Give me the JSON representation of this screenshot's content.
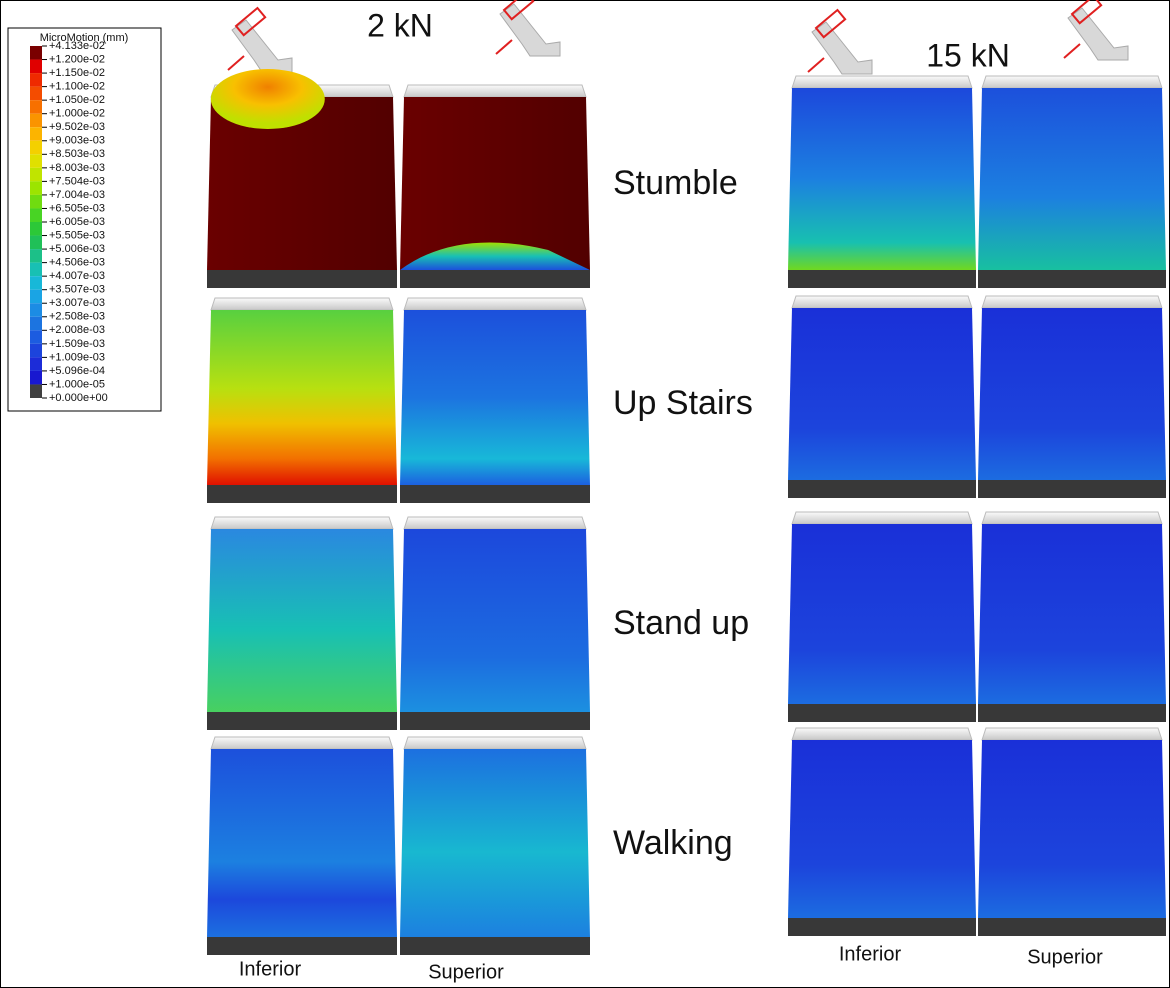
{
  "legend": {
    "title": "MicroMotion (mm)",
    "labels": [
      "+4.133e-02",
      "+1.200e-02",
      "+1.150e-02",
      "+1.100e-02",
      "+1.050e-02",
      "+1.000e-02",
      "+9.502e-03",
      "+9.003e-03",
      "+8.503e-03",
      "+8.003e-03",
      "+7.504e-03",
      "+7.004e-03",
      "+6.505e-03",
      "+6.005e-03",
      "+5.505e-03",
      "+5.006e-03",
      "+4.506e-03",
      "+4.007e-03",
      "+3.507e-03",
      "+3.007e-03",
      "+2.508e-03",
      "+2.008e-03",
      "+1.509e-03",
      "+1.009e-03",
      "+5.096e-04",
      "+1.000e-05",
      "+0.000e+00"
    ],
    "colors": [
      "#7a0000",
      "#e00000",
      "#ef2a00",
      "#f44c00",
      "#f77000",
      "#fa9400",
      "#fcb400",
      "#f4d000",
      "#e0e000",
      "#c0e400",
      "#9ce400",
      "#70dc10",
      "#48d424",
      "#2cc838",
      "#20c058",
      "#1cc088",
      "#18c0b4",
      "#18b8d8",
      "#1aa4e4",
      "#1c8ce4",
      "#1c74e0",
      "#1c5ce0",
      "#1c44dc",
      "#1c2cd8",
      "#1818d0",
      "#404040"
    ]
  },
  "loads": [
    "2 kN",
    "15 kN"
  ],
  "rows": [
    "Stumble",
    "Up Stairs",
    "Stand up",
    "Walking"
  ],
  "columns": {
    "left": [
      "Inferior",
      "Superior"
    ],
    "right": [
      "Inferior",
      "Superior"
    ]
  }
}
